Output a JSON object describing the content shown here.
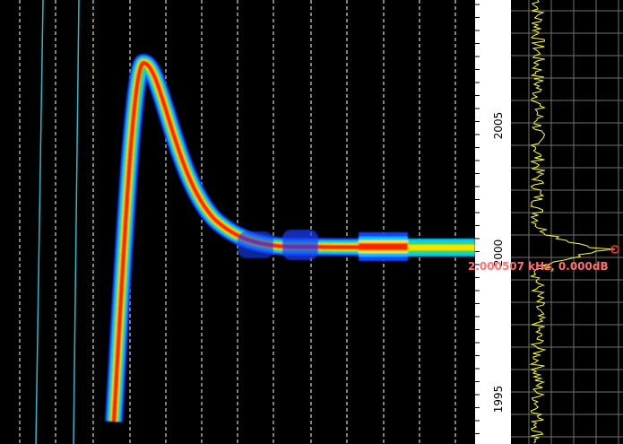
{
  "frequency_axis": {
    "labels": [
      "2005",
      "2000",
      "1995"
    ]
  },
  "cursor": {
    "label": "2.000507 kHz, 0.000dB"
  }
}
